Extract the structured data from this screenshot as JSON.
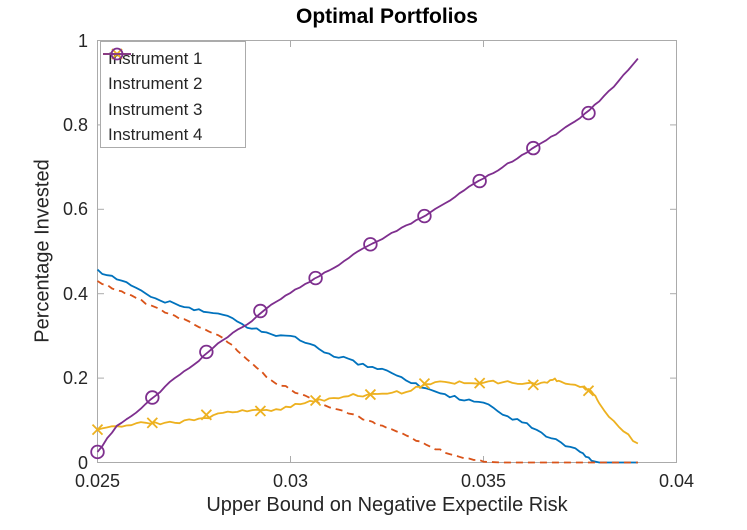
{
  "chart_data": {
    "type": "line",
    "title": "Optimal Portfolios",
    "xlabel": "Upper Bound on Negative Expectile Risk",
    "ylabel": "Percentage Invested",
    "xlim": [
      0.025,
      0.04
    ],
    "ylim": [
      0,
      1
    ],
    "x_ticks": [
      0.025,
      0.03,
      0.035,
      0.04
    ],
    "x_tick_labels": [
      "0.025",
      "0.03",
      "0.035",
      "0.04"
    ],
    "y_ticks": [
      0,
      0.2,
      0.4,
      0.6,
      0.8,
      1
    ],
    "y_tick_labels": [
      "0",
      "0.2",
      "0.4",
      "0.6",
      "0.8",
      "1"
    ],
    "grid": false,
    "box": true,
    "axis_color": "#ababab",
    "legend_position": "top-left",
    "series": [
      {
        "name": "Instrument 1",
        "color": "#0072BD",
        "style": "solid",
        "marker": "none",
        "wiggle": 0.0045,
        "points": [
          [
            0.025,
            0.457
          ],
          [
            0.0255,
            0.434
          ],
          [
            0.026,
            0.414
          ],
          [
            0.0265,
            0.389
          ],
          [
            0.027,
            0.377
          ],
          [
            0.0275,
            0.361
          ],
          [
            0.028,
            0.354
          ],
          [
            0.0285,
            0.342
          ],
          [
            0.029,
            0.317
          ],
          [
            0.0295,
            0.304
          ],
          [
            0.03,
            0.3
          ],
          [
            0.0305,
            0.281
          ],
          [
            0.031,
            0.258
          ],
          [
            0.0315,
            0.246
          ],
          [
            0.032,
            0.226
          ],
          [
            0.0325,
            0.218
          ],
          [
            0.033,
            0.194
          ],
          [
            0.0335,
            0.176
          ],
          [
            0.034,
            0.162
          ],
          [
            0.0345,
            0.147
          ],
          [
            0.035,
            0.142
          ],
          [
            0.0355,
            0.113
          ],
          [
            0.036,
            0.095
          ],
          [
            0.0365,
            0.071
          ],
          [
            0.037,
            0.048
          ],
          [
            0.0375,
            0.025
          ],
          [
            0.0378,
            0.004
          ],
          [
            0.038,
            0
          ],
          [
            0.0385,
            0
          ],
          [
            0.039,
            0
          ]
        ]
      },
      {
        "name": "Instrument 2",
        "color": "#D95319",
        "style": "dashed",
        "marker": "none",
        "wiggle": 0.003,
        "points": [
          [
            0.025,
            0.43
          ],
          [
            0.0255,
            0.408
          ],
          [
            0.026,
            0.39
          ],
          [
            0.0265,
            0.368
          ],
          [
            0.027,
            0.348
          ],
          [
            0.0275,
            0.327
          ],
          [
            0.028,
            0.306
          ],
          [
            0.0285,
            0.278
          ],
          [
            0.029,
            0.235
          ],
          [
            0.0295,
            0.195
          ],
          [
            0.03,
            0.173
          ],
          [
            0.0305,
            0.153
          ],
          [
            0.031,
            0.131
          ],
          [
            0.0315,
            0.116
          ],
          [
            0.032,
            0.1
          ],
          [
            0.0325,
            0.082
          ],
          [
            0.033,
            0.064
          ],
          [
            0.0335,
            0.043
          ],
          [
            0.034,
            0.023
          ],
          [
            0.0345,
            0.01
          ],
          [
            0.035,
            0.002
          ],
          [
            0.0355,
            0
          ],
          [
            0.036,
            0
          ],
          [
            0.0365,
            0
          ],
          [
            0.037,
            0
          ],
          [
            0.0375,
            0
          ],
          [
            0.038,
            0
          ],
          [
            0.0385,
            0
          ],
          [
            0.039,
            0
          ]
        ]
      },
      {
        "name": "Instrument 3",
        "color": "#EDB120",
        "style": "solid",
        "marker": "x",
        "wiggle": 0.0045,
        "points": [
          [
            0.025,
            0.078
          ],
          [
            0.0255,
            0.086
          ],
          [
            0.026,
            0.093
          ],
          [
            0.0265,
            0.095
          ],
          [
            0.027,
            0.094
          ],
          [
            0.0275,
            0.1
          ],
          [
            0.028,
            0.112
          ],
          [
            0.0285,
            0.119
          ],
          [
            0.029,
            0.124
          ],
          [
            0.0295,
            0.122
          ],
          [
            0.03,
            0.131
          ],
          [
            0.0305,
            0.146
          ],
          [
            0.031,
            0.152
          ],
          [
            0.0315,
            0.157
          ],
          [
            0.032,
            0.161
          ],
          [
            0.0325,
            0.163
          ],
          [
            0.033,
            0.167
          ],
          [
            0.0335,
            0.186
          ],
          [
            0.034,
            0.191
          ],
          [
            0.0345,
            0.188
          ],
          [
            0.035,
            0.189
          ],
          [
            0.0355,
            0.19
          ],
          [
            0.036,
            0.186
          ],
          [
            0.0365,
            0.189
          ],
          [
            0.0368,
            0.196
          ],
          [
            0.037,
            0.192
          ],
          [
            0.0375,
            0.179
          ],
          [
            0.0378,
            0.168
          ],
          [
            0.038,
            0.14
          ],
          [
            0.0385,
            0.085
          ],
          [
            0.039,
            0.045
          ]
        ],
        "marker_points": [
          [
            0.025,
            0.078
          ],
          [
            0.02642,
            0.094
          ],
          [
            0.02782,
            0.113
          ],
          [
            0.02922,
            0.122
          ],
          [
            0.03065,
            0.147
          ],
          [
            0.03207,
            0.161
          ],
          [
            0.03347,
            0.187
          ],
          [
            0.0349,
            0.188
          ],
          [
            0.03629,
            0.184
          ],
          [
            0.03772,
            0.17
          ]
        ]
      },
      {
        "name": "Instrument 4",
        "color": "#7E2F8E",
        "style": "solid",
        "marker": "o",
        "wiggle": 0.002,
        "points": [
          [
            0.025,
            0.025
          ],
          [
            0.0255,
            0.087
          ],
          [
            0.026,
            0.118
          ],
          [
            0.0265,
            0.158
          ],
          [
            0.027,
            0.2
          ],
          [
            0.0275,
            0.232
          ],
          [
            0.028,
            0.272
          ],
          [
            0.0285,
            0.307
          ],
          [
            0.029,
            0.335
          ],
          [
            0.0295,
            0.374
          ],
          [
            0.03,
            0.402
          ],
          [
            0.0305,
            0.428
          ],
          [
            0.031,
            0.455
          ],
          [
            0.0315,
            0.484
          ],
          [
            0.032,
            0.513
          ],
          [
            0.0325,
            0.537
          ],
          [
            0.033,
            0.562
          ],
          [
            0.0335,
            0.585
          ],
          [
            0.034,
            0.614
          ],
          [
            0.0345,
            0.645
          ],
          [
            0.035,
            0.673
          ],
          [
            0.0355,
            0.7
          ],
          [
            0.036,
            0.729
          ],
          [
            0.0365,
            0.757
          ],
          [
            0.037,
            0.786
          ],
          [
            0.0375,
            0.816
          ],
          [
            0.038,
            0.856
          ],
          [
            0.0385,
            0.904
          ],
          [
            0.039,
            0.957
          ]
        ],
        "marker_points": [
          [
            0.025,
            0.025
          ],
          [
            0.02642,
            0.154
          ],
          [
            0.02782,
            0.262
          ],
          [
            0.02922,
            0.359
          ],
          [
            0.03065,
            0.437
          ],
          [
            0.03207,
            0.517
          ],
          [
            0.03347,
            0.584
          ],
          [
            0.0349,
            0.667
          ],
          [
            0.03629,
            0.745
          ],
          [
            0.03772,
            0.828
          ]
        ]
      }
    ]
  },
  "legend": {
    "items": [
      "Instrument 1",
      "Instrument 2",
      "Instrument 3",
      "Instrument 4"
    ]
  }
}
